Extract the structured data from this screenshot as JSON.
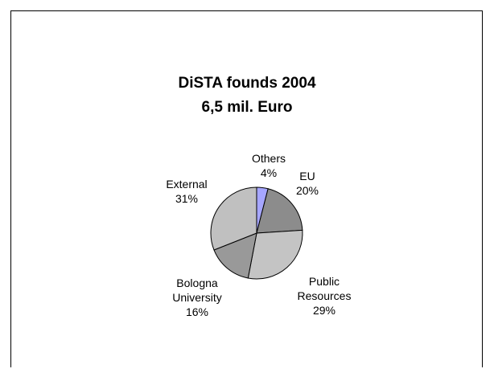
{
  "chart_data": {
    "type": "pie",
    "title": "DiSTA founds 2004",
    "subtitle": "6,5 mil. Euro",
    "slices": [
      {
        "label_lines": [
          "Others"
        ],
        "pct": "4%",
        "value": 4,
        "color": "#a6a6ff"
      },
      {
        "label_lines": [
          "EU"
        ],
        "pct": "20%",
        "value": 20,
        "color": "#8c8c8c"
      },
      {
        "label_lines": [
          "Public",
          "Resources"
        ],
        "pct": "29%",
        "value": 29,
        "color": "#c4c4c4"
      },
      {
        "label_lines": [
          "Bologna",
          "University"
        ],
        "pct": "16%",
        "value": 16,
        "color": "#999999"
      },
      {
        "label_lines": [
          "External"
        ],
        "pct": "31%",
        "value": 31,
        "color": "#c0c0c0"
      }
    ]
  }
}
